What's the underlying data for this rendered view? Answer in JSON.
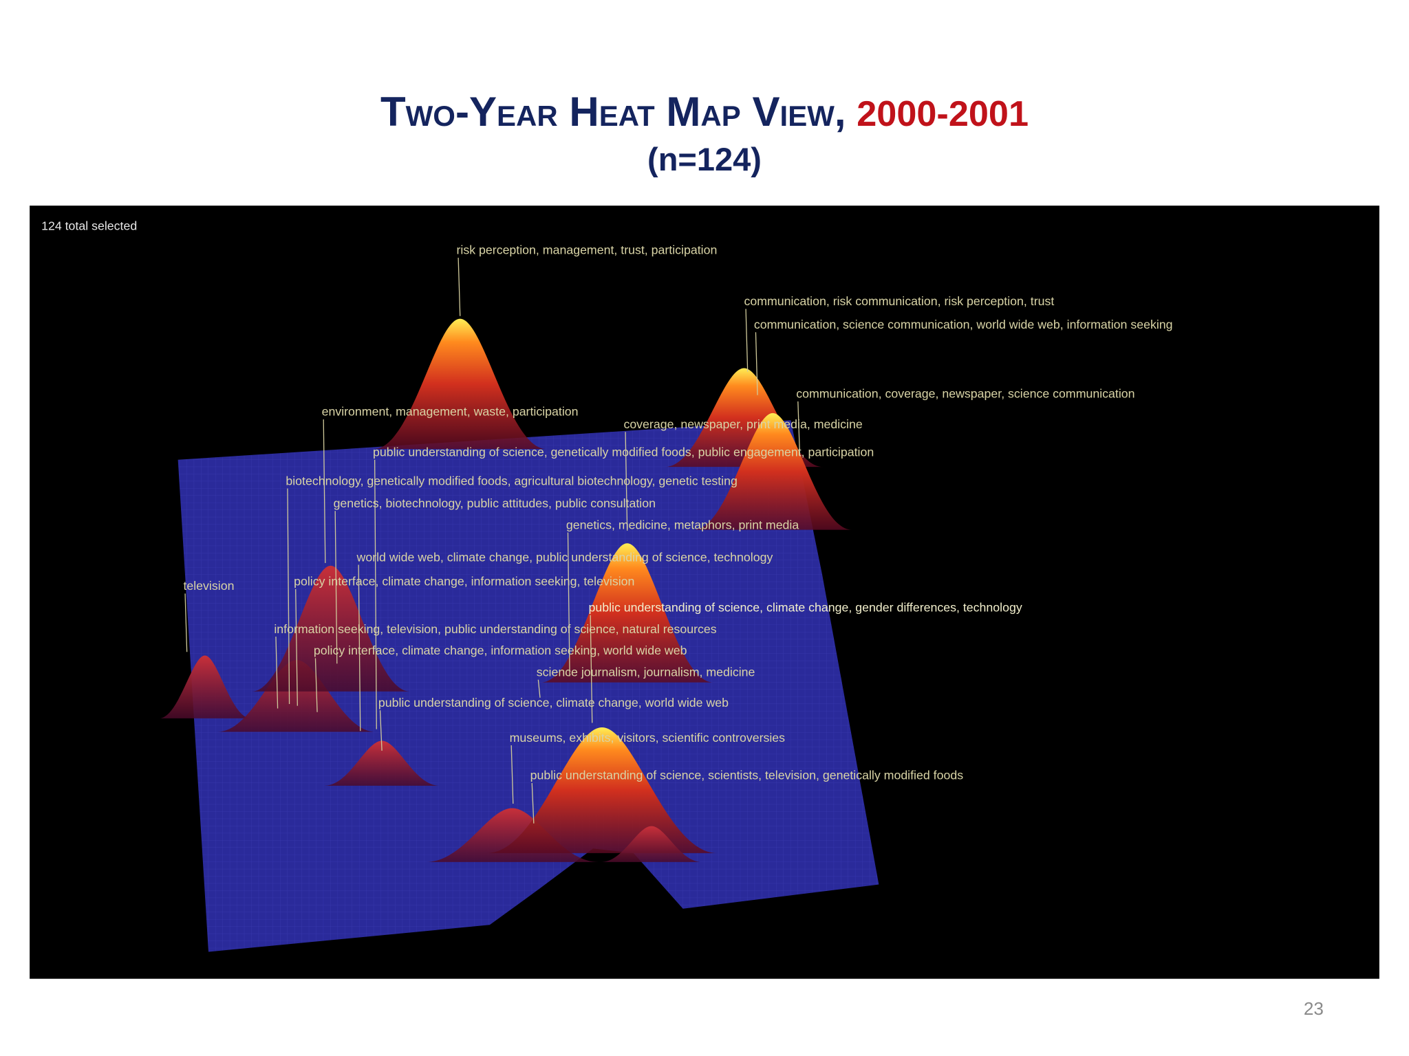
{
  "header": {
    "title": "Two-Year Heat Map View,",
    "title_years": "2000-2001",
    "subtitle": "(n=124)"
  },
  "visualization": {
    "status": "124 total selected",
    "labels": [
      "risk perception, management, trust, participation",
      "communication, risk communication, risk perception, trust",
      "communication, science communication, world wide web, information seeking",
      "communication, coverage, newspaper, science communication",
      "environment, management, waste, participation",
      "coverage, newspaper, print media, medicine",
      "public understanding of science, genetically modified foods, public engagement, participation",
      "biotechnology, genetically modified foods, agricultural biotechnology, genetic testing",
      "genetics, biotechnology, public attitudes, public consultation",
      "genetics, medicine, metaphors, print media",
      "world wide web, climate change, public understanding of science, technology",
      "television",
      "policy interface, climate change, information seeking, television",
      "public understanding of science, climate change, gender differences, technology",
      "information seeking, television, public understanding of science, natural resources",
      "policy interface, climate change, information seeking, world wide web",
      "science journalism, journalism, medicine",
      "public understanding of science, climate change, world wide web",
      "museums, exhibits, visitors, scientific controversies",
      "public understanding of science, scientists, television, genetically modified foods"
    ]
  },
  "page_number": "23"
}
